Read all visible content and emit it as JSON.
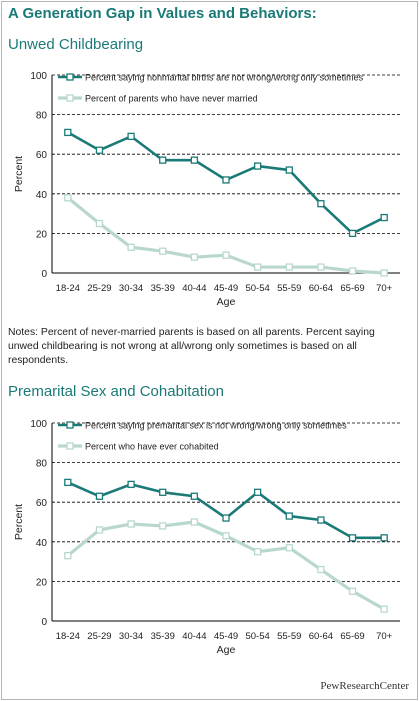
{
  "header": {
    "title": "A Generation Gap in Values and Behaviors:",
    "credit": "PewResearchCenter"
  },
  "notes": "Notes: Percent of never-married parents is based on all parents. Percent saying unwed childbearing is not wrong at all/wrong only sometimes is based on all respondents.",
  "colors": {
    "series1": "#1a7a78",
    "series2": "#b9d8cc",
    "title": "#1a7a78",
    "grid": "#000000"
  },
  "chart_data": [
    {
      "type": "line",
      "title": "Unwed Childbearing",
      "xlabel": "Age",
      "ylabel": "Percent",
      "ylim": [
        0,
        100
      ],
      "yticks": [
        0,
        20,
        40,
        60,
        80,
        100
      ],
      "grid": "horizontal dashed",
      "legend": "top-right",
      "categories": [
        "18-24",
        "25-29",
        "30-34",
        "35-39",
        "40-44",
        "45-49",
        "50-54",
        "55-59",
        "60-64",
        "65-69",
        "70+"
      ],
      "series": [
        {
          "name": "Percent saying nonmarital births are not wrong/wrong only sometimes",
          "values": [
            71,
            62,
            69,
            57,
            57,
            47,
            54,
            52,
            35,
            20,
            28
          ]
        },
        {
          "name": "Percent of parents who have never married",
          "values": [
            38,
            25,
            13,
            11,
            8,
            9,
            3,
            3,
            3,
            1,
            0
          ]
        }
      ]
    },
    {
      "type": "line",
      "title": "Premarital Sex and Cohabitation",
      "xlabel": "Age",
      "ylabel": "Percent",
      "ylim": [
        0,
        100
      ],
      "yticks": [
        0,
        20,
        40,
        60,
        80,
        100
      ],
      "grid": "horizontal dashed",
      "legend": "top-right",
      "categories": [
        "18-24",
        "25-29",
        "30-34",
        "35-39",
        "40-44",
        "45-49",
        "50-54",
        "55-59",
        "60-64",
        "65-69",
        "70+"
      ],
      "series": [
        {
          "name": "Percent saying premarital sex is not wrong/wrong only sometimes",
          "values": [
            70,
            63,
            69,
            65,
            63,
            52,
            65,
            53,
            51,
            42,
            42
          ]
        },
        {
          "name": "Percent who have ever cohabited",
          "values": [
            33,
            46,
            49,
            48,
            50,
            43,
            35,
            37,
            26,
            15,
            6
          ]
        }
      ]
    }
  ]
}
